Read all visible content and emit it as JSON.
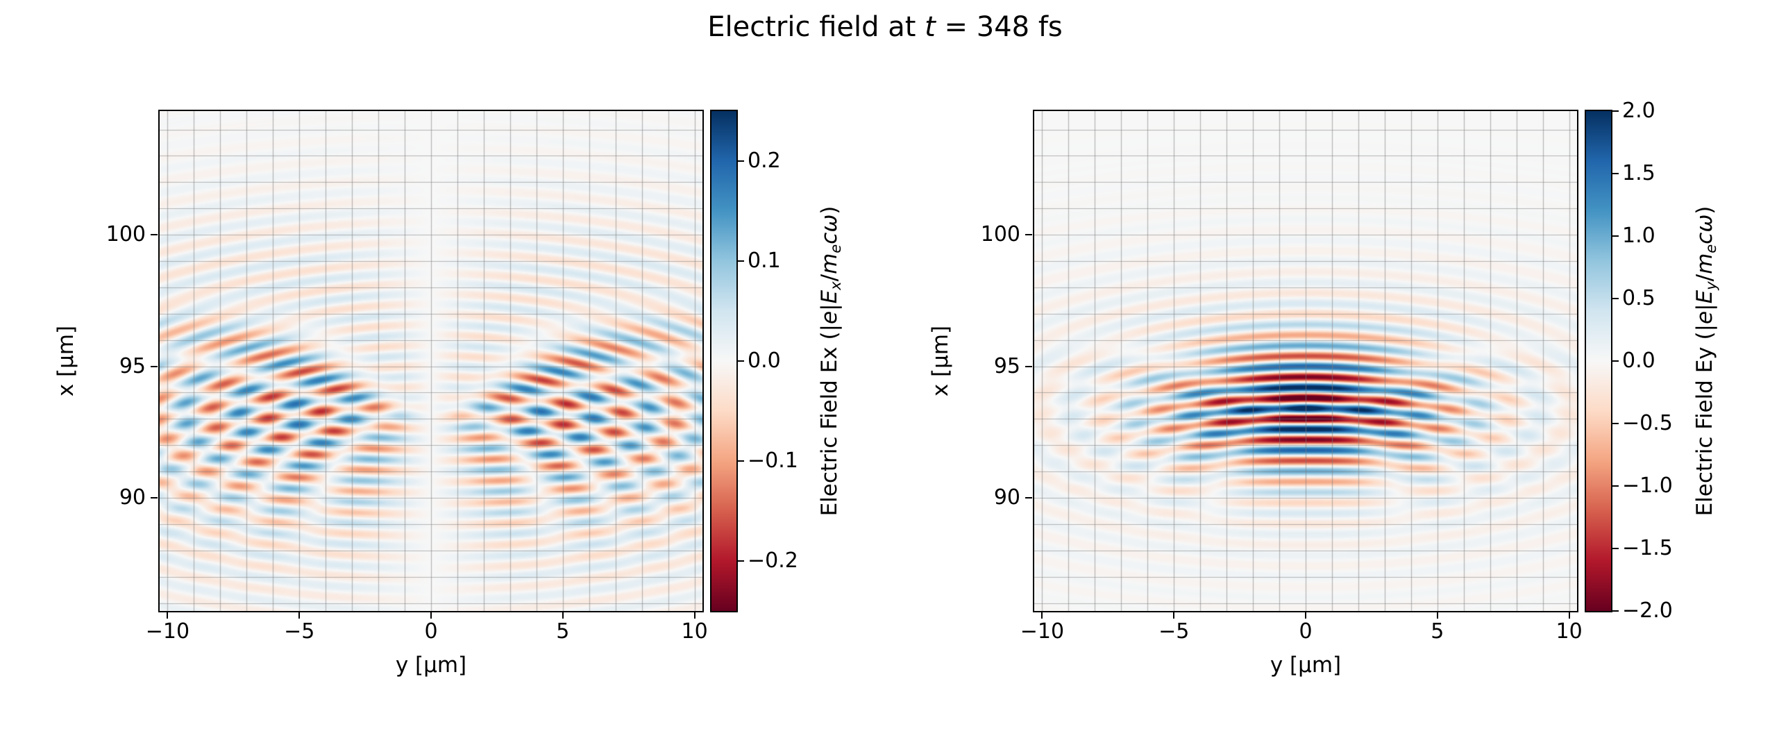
{
  "title_parts": [
    {
      "t": "Electric field at "
    },
    {
      "t": "t",
      "i": true
    },
    {
      "t": " = 348 fs"
    }
  ],
  "time_fs": 348,
  "grid_color": "rgba(125,125,125,0.55)",
  "colormap": {
    "name": "RdBu",
    "stops": [
      {
        "p": 0.0,
        "c": "#67001f"
      },
      {
        "p": 0.1,
        "c": "#b2182b"
      },
      {
        "p": 0.2,
        "c": "#d6604d"
      },
      {
        "p": 0.3,
        "c": "#f4a582"
      },
      {
        "p": 0.4,
        "c": "#fddbc7"
      },
      {
        "p": 0.5,
        "c": "#f7f7f7"
      },
      {
        "p": 0.6,
        "c": "#d1e5f0"
      },
      {
        "p": 0.7,
        "c": "#92c5de"
      },
      {
        "p": 0.8,
        "c": "#4393c3"
      },
      {
        "p": 0.9,
        "c": "#2166ac"
      },
      {
        "p": 1.0,
        "c": "#053061"
      }
    ]
  },
  "chart_data": [
    {
      "type": "heatmap",
      "xlabel": "y [μm]",
      "ylabel": "x [μm]",
      "xlim": [
        -10.3,
        10.3
      ],
      "ylim": [
        85.7,
        104.7
      ],
      "xtick_values": [
        -10,
        -5,
        0,
        5,
        10
      ],
      "xtick_labels": [
        "−10",
        "−5",
        "0",
        "5",
        "10"
      ],
      "ytick_values": [
        90,
        95,
        100
      ],
      "ytick_labels": [
        "90",
        "95",
        "100"
      ],
      "grid": true,
      "grid_step_um": 1,
      "colorbar": {
        "vmin": -0.25,
        "vmax": 0.25,
        "tick_values": [
          0.2,
          0.1,
          0.0,
          -0.1,
          -0.2
        ],
        "tick_labels": [
          "0.2",
          "0.1",
          "0.0",
          "−0.1",
          "−0.2"
        ],
        "label_parts": [
          {
            "t": "Electric Field Ex (|"
          },
          {
            "t": "e",
            "i": true
          },
          {
            "t": "|"
          },
          {
            "t": "E",
            "i": true
          },
          {
            "t": "x",
            "i": true,
            "sub": true
          },
          {
            "t": "/"
          },
          {
            "t": "m",
            "i": true
          },
          {
            "t": "e",
            "i": true,
            "sub": true
          },
          {
            "t": "c",
            "i": true
          },
          {
            "t": "ω",
            "i": true
          },
          {
            "t": ")"
          }
        ]
      },
      "field": {
        "component": "Ex",
        "carrier_wavelength_um": 0.8,
        "focus_x_um": 93.3,
        "focus_y_um": 0,
        "sigma_x_um": 2.4,
        "sigma_y_um": 7.0,
        "peak_amplitude": 0.16,
        "wavefront_R_um": 40,
        "quadrature": true,
        "antisymmetric_in_y": true,
        "ring_amplitude": 0.1,
        "ring_aspect": 2.6,
        "ring_sigma_um": 4.5
      }
    },
    {
      "type": "heatmap",
      "xlabel": "y [μm]",
      "ylabel": "x [μm]",
      "xlim": [
        -10.3,
        10.3
      ],
      "ylim": [
        85.7,
        104.7
      ],
      "xtick_values": [
        -10,
        -5,
        0,
        5,
        10
      ],
      "xtick_labels": [
        "−10",
        "−5",
        "0",
        "5",
        "10"
      ],
      "ytick_values": [
        90,
        95,
        100
      ],
      "ytick_labels": [
        "90",
        "95",
        "100"
      ],
      "grid": true,
      "grid_step_um": 1,
      "colorbar": {
        "vmin": -2.0,
        "vmax": 2.0,
        "tick_values": [
          2.0,
          1.5,
          1.0,
          0.5,
          0.0,
          -0.5,
          -1.0,
          -1.5,
          -2.0
        ],
        "tick_labels": [
          "2.0",
          "1.5",
          "1.0",
          "0.5",
          "0.0",
          "−0.5",
          "−1.0",
          "−1.5",
          "−2.0"
        ],
        "label_parts": [
          {
            "t": "Electric Field Ey (|"
          },
          {
            "t": "e",
            "i": true
          },
          {
            "t": "|"
          },
          {
            "t": "E",
            "i": true
          },
          {
            "t": "y",
            "i": true,
            "sub": true
          },
          {
            "t": "/"
          },
          {
            "t": "m",
            "i": true
          },
          {
            "t": "e",
            "i": true,
            "sub": true
          },
          {
            "t": "c",
            "i": true
          },
          {
            "t": "ω",
            "i": true
          },
          {
            "t": ")"
          }
        ]
      },
      "field": {
        "component": "Ey",
        "carrier_wavelength_um": 0.8,
        "focus_x_um": 93.4,
        "focus_y_um": 0,
        "sigma_x_um": 1.7,
        "sigma_y_um": 3.8,
        "peak_amplitude": 2.1,
        "wavefront_R_um": 35,
        "quadrature": false,
        "antisymmetric_in_y": false,
        "ring_amplitude": 0.3,
        "ring_aspect": 2.8,
        "ring_sigma_um": 3.8
      }
    }
  ]
}
